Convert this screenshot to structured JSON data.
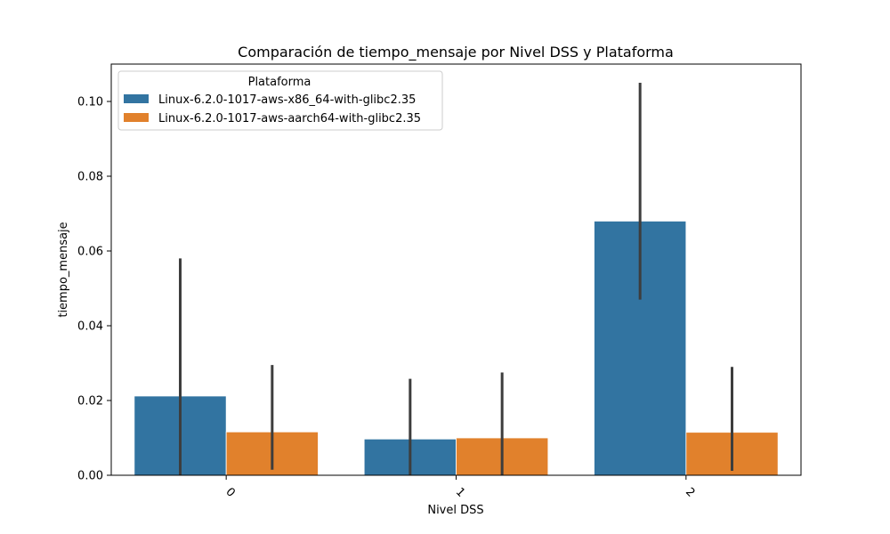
{
  "chart_data": {
    "type": "bar",
    "title": "Comparación de tiempo_mensaje por Nivel DSS y Plataforma",
    "xlabel": "Nivel DSS",
    "ylabel": "tiempo_mensaje",
    "categories": [
      "0",
      "1",
      "2"
    ],
    "ylim": [
      0,
      0.11
    ],
    "yticks": [
      0.0,
      0.02,
      0.04,
      0.06,
      0.08,
      0.1
    ],
    "ytick_labels": [
      "0.00",
      "0.02",
      "0.04",
      "0.06",
      "0.08",
      "0.10"
    ],
    "grid": false,
    "legend": {
      "title": "Plataforma",
      "placement": "top-left"
    },
    "series": [
      {
        "name": "Linux-6.2.0-1017-aws-x86_64-with-glibc2.35",
        "color": "#3274a1",
        "values": [
          0.0212,
          0.0097,
          0.068
        ],
        "error_low": [
          0.0,
          0.0,
          0.047
        ],
        "error_high": [
          0.058,
          0.0258,
          0.105
        ]
      },
      {
        "name": "Linux-6.2.0-1017-aws-aarch64-with-glibc2.35",
        "color": "#e1812c",
        "values": [
          0.0116,
          0.01,
          0.0115
        ],
        "error_low": [
          0.0015,
          0.0,
          0.0012
        ],
        "error_high": [
          0.0295,
          0.0275,
          0.029
        ]
      }
    ],
    "error_bar_color": "#3d3d3d"
  }
}
